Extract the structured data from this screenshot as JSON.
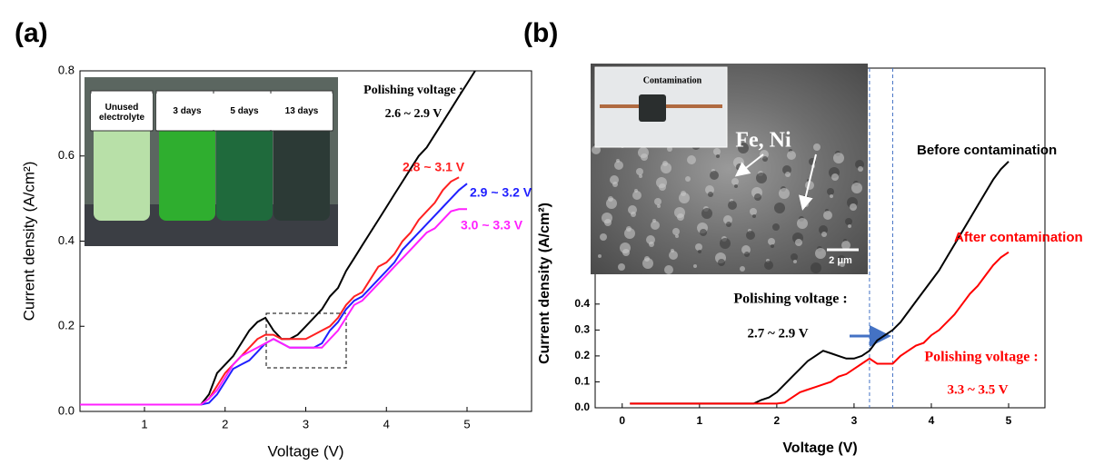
{
  "chart_data": [
    {
      "type": "line",
      "title": "(a)",
      "xlabel": "Voltage (V)",
      "ylabel": "Current density (A/cm²)",
      "xlim": [
        0.2,
        5.8
      ],
      "ylim": [
        0,
        0.8
      ],
      "xticks": [
        1,
        2,
        3,
        4,
        5
      ],
      "yticks": [
        {
          "value": 0,
          "label": "0.0"
        },
        0.2,
        0.4,
        0.6,
        0.8
      ],
      "x": [
        0.2,
        1.7,
        1.8,
        1.9,
        2.0,
        2.1,
        2.2,
        2.3,
        2.4,
        2.5,
        2.6,
        2.7,
        2.8,
        2.9,
        3.0,
        3.1,
        3.2,
        3.3,
        3.4,
        3.5,
        3.6,
        3.7,
        3.8,
        3.9,
        4.0,
        4.1,
        4.2,
        4.3,
        4.4,
        4.5,
        4.6,
        4.7,
        4.8,
        4.9,
        5.0,
        5.1
      ],
      "series": [
        {
          "name": "Unused electrolyte",
          "color": "#000000",
          "values": [
            0.016,
            0.016,
            0.04,
            0.09,
            0.11,
            0.13,
            0.16,
            0.19,
            0.21,
            0.22,
            0.19,
            0.17,
            0.17,
            0.18,
            0.2,
            0.22,
            0.24,
            0.27,
            0.29,
            0.33,
            0.36,
            0.39,
            0.42,
            0.45,
            0.48,
            0.51,
            0.54,
            0.57,
            0.6,
            0.62,
            0.65,
            0.68,
            0.71,
            0.74,
            0.77,
            0.8
          ]
        },
        {
          "name": "3 days",
          "color": "#ff2020",
          "values": [
            0.016,
            0.016,
            0.03,
            0.06,
            0.09,
            0.11,
            0.13,
            0.15,
            0.17,
            0.18,
            0.18,
            0.17,
            0.17,
            0.17,
            0.17,
            0.18,
            0.19,
            0.2,
            0.22,
            0.25,
            0.27,
            0.28,
            0.31,
            0.34,
            0.35,
            0.37,
            0.4,
            0.42,
            0.45,
            0.47,
            0.49,
            0.52,
            0.54,
            0.55,
            null,
            null
          ]
        },
        {
          "name": "5 days",
          "color": "#2020ff",
          "values": [
            0.016,
            0.016,
            0.02,
            0.04,
            0.07,
            0.1,
            0.11,
            0.12,
            0.14,
            0.16,
            0.17,
            0.16,
            0.15,
            0.15,
            0.15,
            0.15,
            0.16,
            0.19,
            0.21,
            0.24,
            0.26,
            0.27,
            0.29,
            0.31,
            0.33,
            0.35,
            0.38,
            0.4,
            0.42,
            0.44,
            0.46,
            0.48,
            0.5,
            0.52,
            0.535,
            null
          ]
        },
        {
          "name": "13 days",
          "color": "#ff20ff",
          "values": [
            0.016,
            0.016,
            0.03,
            0.05,
            0.08,
            0.11,
            0.13,
            0.14,
            0.15,
            0.16,
            0.17,
            0.16,
            0.15,
            0.15,
            0.15,
            0.15,
            0.15,
            0.17,
            0.19,
            0.22,
            0.25,
            0.26,
            0.28,
            0.3,
            0.32,
            0.34,
            0.36,
            0.38,
            0.4,
            0.42,
            0.43,
            0.45,
            0.47,
            0.475,
            0.475,
            null
          ]
        }
      ],
      "annotations": [
        "Polishing voltage :",
        "2.6 ~ 2.9 V",
        "2.8 ~ 3.1 V",
        "2.9 ~ 3.2 V",
        "3.0 ~ 3.3 V"
      ]
    },
    {
      "type": "line",
      "title": "(b)",
      "xlabel": "Voltage (V)",
      "ylabel": "Current density (A/cm²)",
      "xlim": [
        -0.35,
        5.47
      ],
      "ylim": [
        0,
        1.31
      ],
      "xticks": [
        0,
        1,
        2,
        3,
        4,
        5
      ],
      "yticks": [
        {
          "value": 0,
          "label": "0.0"
        },
        0.1,
        0.2,
        0.3,
        0.4
      ],
      "vlines": [
        3.2,
        3.5
      ],
      "x": [
        0.1,
        1.7,
        1.8,
        1.9,
        2.0,
        2.1,
        2.2,
        2.3,
        2.4,
        2.5,
        2.6,
        2.7,
        2.8,
        2.9,
        3.0,
        3.1,
        3.2,
        3.3,
        3.4,
        3.5,
        3.6,
        3.7,
        3.8,
        3.9,
        4.0,
        4.1,
        4.2,
        4.3,
        4.4,
        4.5,
        4.6,
        4.7,
        4.8,
        4.9,
        5.0
      ],
      "series": [
        {
          "name": "Before contamination",
          "color": "#000000",
          "values": [
            0.016,
            0.016,
            0.03,
            0.04,
            0.06,
            0.09,
            0.12,
            0.15,
            0.18,
            0.2,
            0.22,
            0.21,
            0.2,
            0.19,
            0.19,
            0.2,
            0.22,
            0.26,
            0.28,
            0.3,
            0.33,
            0.37,
            0.41,
            0.45,
            0.49,
            0.53,
            0.58,
            0.63,
            0.68,
            0.73,
            0.78,
            0.83,
            0.88,
            0.92,
            0.95
          ]
        },
        {
          "name": "After contamination",
          "color": "#ff0000",
          "values": [
            0.016,
            0.016,
            0.016,
            0.016,
            0.016,
            0.02,
            0.04,
            0.06,
            0.07,
            0.08,
            0.09,
            0.1,
            0.12,
            0.13,
            0.15,
            0.17,
            0.19,
            0.17,
            0.17,
            0.17,
            0.2,
            0.22,
            0.24,
            0.25,
            0.28,
            0.3,
            0.33,
            0.36,
            0.4,
            0.44,
            0.47,
            0.51,
            0.55,
            0.58,
            0.6
          ]
        }
      ],
      "annotations": [
        "Contamination",
        "Fe, Ni",
        "2 μm",
        "Polishing voltage :",
        "2.7 ~ 2.9 V",
        "Polishing voltage :",
        "3.3 ~ 3.5 V"
      ]
    }
  ]
}
